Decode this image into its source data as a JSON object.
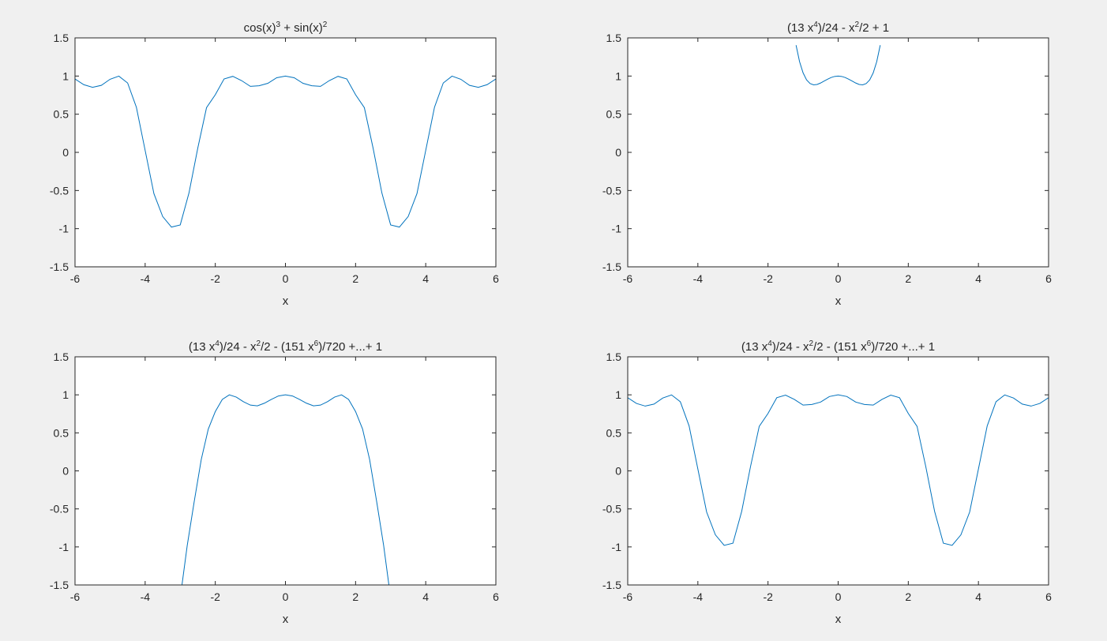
{
  "chart_data": [
    {
      "type": "line",
      "title": {
        "segments": [
          {
            "t": "cos(x)"
          },
          {
            "t": "3",
            "sup": true
          },
          {
            "t": " + sin(x)"
          },
          {
            "t": "2",
            "sup": true
          }
        ]
      },
      "xlabel": "x",
      "ylabel": "",
      "xlim": [
        -6,
        6
      ],
      "ylim": [
        -1.5,
        1.5
      ],
      "xticks": [
        -6,
        -4,
        -2,
        0,
        2,
        4,
        6
      ],
      "yticks": [
        -1.5,
        -1,
        -0.5,
        0,
        0.5,
        1,
        1.5
      ],
      "xtick_labels": [
        "-6",
        "-4",
        "-2",
        "0",
        "2",
        "4",
        "6"
      ],
      "ytick_labels": [
        "-1.5",
        "-1",
        "-0.5",
        "0",
        "0.5",
        "1",
        "1.5"
      ],
      "grid": false,
      "series": [
        {
          "line_color": "#0072bd",
          "x": [
            -6,
            -5.75,
            -5.5,
            -5.25,
            -5,
            -4.75,
            -4.5,
            -4.25,
            -4,
            -3.75,
            -3.5,
            -3.25,
            -3,
            -2.75,
            -2.5,
            -2.25,
            -2,
            -1.75,
            -1.5,
            -1.25,
            -1,
            -0.75,
            -0.5,
            -0.25,
            0,
            0.25,
            0.5,
            0.75,
            1,
            1.25,
            1.5,
            1.75,
            2,
            2.25,
            2.5,
            2.75,
            3,
            3.25,
            3.5,
            3.75,
            4,
            4.25,
            4.5,
            4.75,
            5,
            5.25,
            5.5,
            5.75,
            6
          ],
          "y": [
            0.962,
            0.887,
            0.852,
            0.878,
            0.958,
            0.999,
            0.909,
            0.591,
            0.025,
            -0.541,
            -0.841,
            -0.979,
            -0.951,
            -0.532,
            0.054,
            0.586,
            0.755,
            0.962,
            0.996,
            0.94,
            0.865,
            0.873,
            0.905,
            0.978,
            1,
            0.978,
            0.905,
            0.873,
            0.865,
            0.94,
            0.996,
            0.962,
            0.755,
            0.586,
            0.054,
            -0.532,
            -0.951,
            -0.979,
            -0.841,
            -0.541,
            0.025,
            0.591,
            0.909,
            0.999,
            0.958,
            0.878,
            0.852,
            0.887,
            0.962
          ]
        }
      ]
    },
    {
      "type": "line",
      "title": {
        "segments": [
          {
            "t": "(13 x"
          },
          {
            "t": "4",
            "sup": true
          },
          {
            "t": ")/24 - x"
          },
          {
            "t": "2",
            "sup": true
          },
          {
            "t": "/2 + 1"
          }
        ]
      },
      "xlabel": "x",
      "ylabel": "",
      "xlim": [
        -6,
        6
      ],
      "ylim": [
        -1.5,
        1.5
      ],
      "xticks": [
        -6,
        -4,
        -2,
        0,
        2,
        4,
        6
      ],
      "yticks": [
        -1.5,
        -1,
        -0.5,
        0,
        0.5,
        1,
        1.5
      ],
      "xtick_labels": [
        "-6",
        "-4",
        "-2",
        "0",
        "2",
        "4",
        "6"
      ],
      "ytick_labels": [
        "-1.5",
        "-1",
        "-0.5",
        "0",
        "0.5",
        "1",
        "1.5"
      ],
      "grid": false,
      "series": [
        {
          "line_color": "#0072bd",
          "x": [
            -1.2,
            -1.1,
            -1,
            -0.9,
            -0.8,
            -0.7,
            -0.6,
            -0.5,
            -0.4,
            -0.3,
            -0.2,
            -0.1,
            0,
            0.1,
            0.2,
            0.3,
            0.4,
            0.5,
            0.6,
            0.7,
            0.8,
            0.9,
            1,
            1.1,
            1.2
          ],
          "y": [
            1.404,
            1.188,
            1.042,
            0.95,
            0.902,
            0.885,
            0.89,
            0.909,
            0.934,
            0.959,
            0.981,
            0.995,
            1,
            0.995,
            0.981,
            0.959,
            0.934,
            0.909,
            0.89,
            0.885,
            0.902,
            0.95,
            1.042,
            1.188,
            1.404
          ]
        }
      ]
    },
    {
      "type": "line",
      "title": {
        "segments": [
          {
            "t": "(13 x"
          },
          {
            "t": "4",
            "sup": true
          },
          {
            "t": ")/24 - x"
          },
          {
            "t": "2",
            "sup": true
          },
          {
            "t": "/2 - (151 x"
          },
          {
            "t": "6",
            "sup": true
          },
          {
            "t": ")/720 +...+ 1"
          }
        ]
      },
      "xlabel": "x",
      "ylabel": "",
      "xlim": [
        -6,
        6
      ],
      "ylim": [
        -1.5,
        1.5
      ],
      "xticks": [
        -6,
        -4,
        -2,
        0,
        2,
        4,
        6
      ],
      "yticks": [
        -1.5,
        -1,
        -0.5,
        0,
        0.5,
        1,
        1.5
      ],
      "xtick_labels": [
        "-6",
        "-4",
        "-2",
        "0",
        "2",
        "4",
        "6"
      ],
      "ytick_labels": [
        "-1.5",
        "-1",
        "-0.5",
        "0",
        "0.5",
        "1",
        "1.5"
      ],
      "grid": false,
      "series": [
        {
          "line_color": "#0072bd",
          "x": [
            -2.95,
            -2.8,
            -2.6,
            -2.4,
            -2.2,
            -2,
            -1.8,
            -1.6,
            -1.4,
            -1.2,
            -1,
            -0.8,
            -0.6,
            -0.4,
            -0.2,
            0,
            0.2,
            0.4,
            0.6,
            0.8,
            1,
            1.2,
            1.4,
            1.6,
            1.8,
            2,
            2.2,
            2.4,
            2.6,
            2.8,
            2.95
          ],
          "y": [
            -1.5,
            -0.98,
            -0.4,
            0.15,
            0.55,
            0.78,
            0.94,
            1,
            0.97,
            0.91,
            0.865,
            0.855,
            0.89,
            0.94,
            0.985,
            1,
            0.985,
            0.94,
            0.89,
            0.855,
            0.865,
            0.91,
            0.97,
            1,
            0.94,
            0.78,
            0.55,
            0.15,
            -0.4,
            -0.98,
            -1.5
          ]
        }
      ]
    },
    {
      "type": "line",
      "title": {
        "segments": [
          {
            "t": "(13 x"
          },
          {
            "t": "4",
            "sup": true
          },
          {
            "t": ")/24 - x"
          },
          {
            "t": "2",
            "sup": true
          },
          {
            "t": "/2 - (151 x"
          },
          {
            "t": "6",
            "sup": true
          },
          {
            "t": ")/720 +...+ 1"
          }
        ]
      },
      "xlabel": "x",
      "ylabel": "",
      "xlim": [
        -6,
        6
      ],
      "ylim": [
        -1.5,
        1.5
      ],
      "xticks": [
        -6,
        -4,
        -2,
        0,
        2,
        4,
        6
      ],
      "yticks": [
        -1.5,
        -1,
        -0.5,
        0,
        0.5,
        1,
        1.5
      ],
      "xtick_labels": [
        "-6",
        "-4",
        "-2",
        "0",
        "2",
        "4",
        "6"
      ],
      "ytick_labels": [
        "-1.5",
        "-1",
        "-0.5",
        "0",
        "0.5",
        "1",
        "1.5"
      ],
      "grid": false,
      "series": [
        {
          "line_color": "#0072bd",
          "x": [
            -6,
            -5.75,
            -5.5,
            -5.25,
            -5,
            -4.75,
            -4.5,
            -4.25,
            -4,
            -3.75,
            -3.5,
            -3.25,
            -3,
            -2.75,
            -2.5,
            -2.25,
            -2,
            -1.75,
            -1.5,
            -1.25,
            -1,
            -0.75,
            -0.5,
            -0.25,
            0,
            0.25,
            0.5,
            0.75,
            1,
            1.25,
            1.5,
            1.75,
            2,
            2.25,
            2.5,
            2.75,
            3,
            3.25,
            3.5,
            3.75,
            4,
            4.25,
            4.5,
            4.75,
            5,
            5.25,
            5.5,
            5.75,
            6
          ],
          "y": [
            0.962,
            0.887,
            0.852,
            0.878,
            0.958,
            0.999,
            0.909,
            0.591,
            0.025,
            -0.541,
            -0.841,
            -0.979,
            -0.951,
            -0.532,
            0.054,
            0.586,
            0.755,
            0.962,
            0.996,
            0.94,
            0.865,
            0.873,
            0.905,
            0.978,
            1,
            0.978,
            0.905,
            0.873,
            0.865,
            0.94,
            0.996,
            0.962,
            0.755,
            0.586,
            0.054,
            -0.532,
            -0.951,
            -0.979,
            -0.841,
            -0.541,
            0.025,
            0.591,
            0.909,
            0.999,
            0.958,
            0.878,
            0.852,
            0.887,
            0.962
          ]
        }
      ]
    }
  ]
}
